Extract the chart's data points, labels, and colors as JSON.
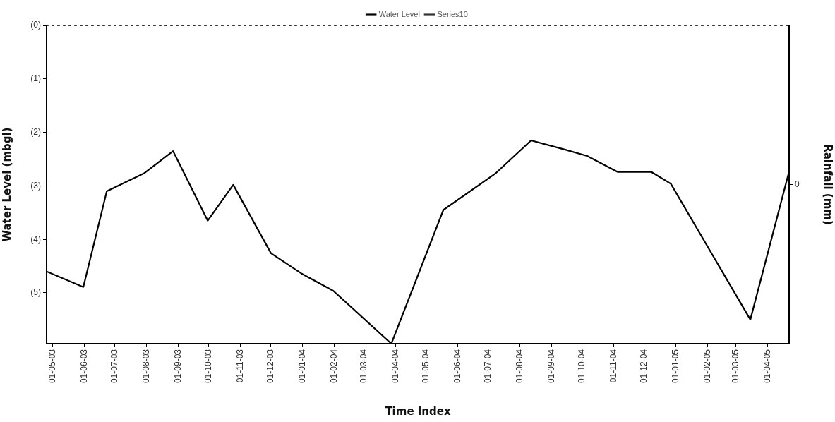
{
  "chart_data": {
    "type": "line",
    "xlabel": "Time Index",
    "ylabel": "Water Level (mbgl)",
    "y2label": "Rainfall (mm)",
    "annotations": [
      "0"
    ],
    "xlim": [
      "2003-04-25",
      "2005-04-22"
    ],
    "xticks": [
      {
        "value": "2003-05-01",
        "label": "01-05-03"
      },
      {
        "value": "2003-06-01",
        "label": "01-06-03"
      },
      {
        "value": "2003-07-01",
        "label": "01-07-03"
      },
      {
        "value": "2003-08-01",
        "label": "01-08-03"
      },
      {
        "value": "2003-09-01",
        "label": "01-09-03"
      },
      {
        "value": "2003-10-01",
        "label": "01-10-03"
      },
      {
        "value": "2003-11-01",
        "label": "01-11-03"
      },
      {
        "value": "2003-12-01",
        "label": "01-12-03"
      },
      {
        "value": "2004-01-01",
        "label": "01-01-04"
      },
      {
        "value": "2004-02-01",
        "label": "01-02-04"
      },
      {
        "value": "2004-03-01",
        "label": "01-03-04"
      },
      {
        "value": "2004-04-01",
        "label": "01-04-04"
      },
      {
        "value": "2004-05-01",
        "label": "01-05-04"
      },
      {
        "value": "2004-06-01",
        "label": "01-06-04"
      },
      {
        "value": "2004-07-01",
        "label": "01-07-04"
      },
      {
        "value": "2004-08-01",
        "label": "01-08-04"
      },
      {
        "value": "2004-09-01",
        "label": "01-09-04"
      },
      {
        "value": "2004-10-01",
        "label": "01-10-04"
      },
      {
        "value": "2004-11-01",
        "label": "01-11-04"
      },
      {
        "value": "2004-12-01",
        "label": "01-12-04"
      },
      {
        "value": "2005-01-01",
        "label": "01-01-05"
      },
      {
        "value": "2005-02-01",
        "label": "01-02-05"
      },
      {
        "value": "2005-03-01",
        "label": "01-03-05"
      },
      {
        "value": "2005-04-01",
        "label": "01-04-05"
      }
    ],
    "ylim": [
      -5.95,
      0
    ],
    "yticks": [
      {
        "value": 0,
        "label": "(0)"
      },
      {
        "value": -1,
        "label": "(1)"
      },
      {
        "value": -2,
        "label": "(2)"
      },
      {
        "value": -3,
        "label": "(3)"
      },
      {
        "value": -4,
        "label": "(4)"
      },
      {
        "value": -5,
        "label": "(5)"
      }
    ],
    "series": [
      {
        "name": "Water Level",
        "color": "#000000",
        "x": [
          "2003-04-25",
          "2003-05-31",
          "2003-06-23",
          "2003-07-30",
          "2003-08-27",
          "2003-09-30",
          "2003-10-25",
          "2003-12-01",
          "2003-12-31",
          "2004-01-31",
          "2004-03-28",
          "2004-05-18",
          "2004-07-08",
          "2004-08-12",
          "2004-09-14",
          "2004-10-06",
          "2004-11-05",
          "2004-12-08",
          "2004-12-27",
          "2005-03-15",
          "2005-04-22"
        ],
        "values": [
          -4.6,
          -4.89,
          -3.1,
          -2.76,
          -2.35,
          -3.65,
          -2.98,
          -4.26,
          -4.64,
          -4.96,
          -5.95,
          -3.45,
          -2.77,
          -2.15,
          -2.32,
          -2.44,
          -2.74,
          -2.74,
          -2.96,
          -5.5,
          -2.73
        ]
      },
      {
        "name": "Series10",
        "color": "#333333",
        "line_style": "dotted",
        "x": [
          "2003-04-25",
          "2005-04-22"
        ],
        "values": [
          0,
          0
        ]
      }
    ],
    "legend": "top",
    "grid": false,
    "marker": "none"
  }
}
